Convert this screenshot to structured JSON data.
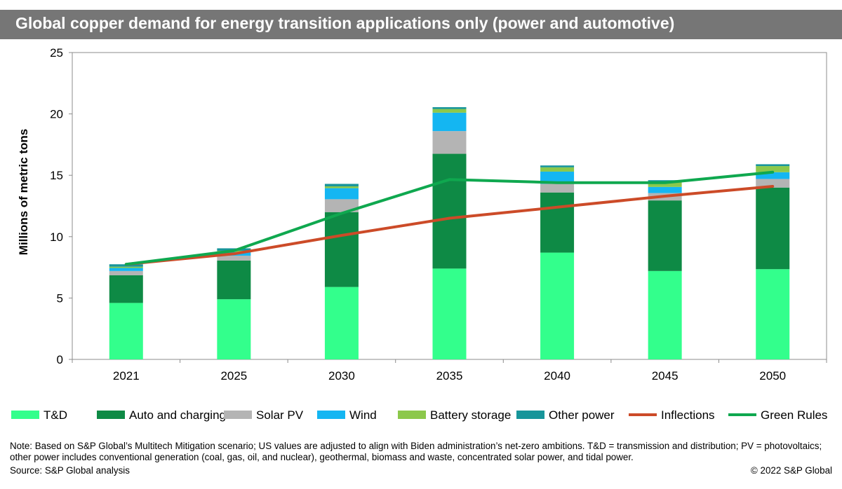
{
  "chart_data": {
    "type": "bar",
    "stacked": true,
    "title": "Global copper demand for energy transition applications only (power and automotive)",
    "ylabel": "Millions of metric tons",
    "xlabel": "",
    "ylim": [
      0,
      25
    ],
    "yticks": [
      "0",
      "5",
      "10",
      "15",
      "20",
      "25"
    ],
    "grid": false,
    "legend_position": "bottom",
    "categories": [
      "2021",
      "2025",
      "2030",
      "2035",
      "2040",
      "2045",
      "2050"
    ],
    "series": [
      {
        "name": "T&D",
        "kind": "bar",
        "color": "#33ff8c",
        "values": [
          4.6,
          4.9,
          5.9,
          7.4,
          8.7,
          7.2,
          7.35
        ]
      },
      {
        "name": "Auto and charging",
        "kind": "bar",
        "color": "#0e8a45",
        "values": [
          2.25,
          3.15,
          6.1,
          9.35,
          4.9,
          5.75,
          6.65
        ]
      },
      {
        "name": "Solar PV",
        "kind": "bar",
        "color": "#b4b4b4",
        "values": [
          0.35,
          0.4,
          1.05,
          1.85,
          0.7,
          0.6,
          0.7
        ]
      },
      {
        "name": "Wind",
        "kind": "bar",
        "color": "#14b6f2",
        "values": [
          0.25,
          0.3,
          0.9,
          1.5,
          1.0,
          0.5,
          0.55
        ]
      },
      {
        "name": "Battery storage",
        "kind": "bar",
        "color": "#8cc84b",
        "values": [
          0.1,
          0.1,
          0.15,
          0.3,
          0.35,
          0.4,
          0.5
        ]
      },
      {
        "name": "Other power",
        "kind": "bar",
        "color": "#17959a",
        "values": [
          0.2,
          0.2,
          0.2,
          0.15,
          0.15,
          0.15,
          0.15
        ]
      },
      {
        "name": "Inflections",
        "kind": "line",
        "color": "#cc4b28",
        "values": [
          7.75,
          8.6,
          10.1,
          11.5,
          12.4,
          13.3,
          14.1
        ]
      },
      {
        "name": "Green Rules",
        "kind": "line",
        "color": "#0fa84f",
        "values": [
          7.75,
          8.85,
          11.9,
          14.65,
          14.4,
          14.4,
          15.25
        ]
      }
    ]
  },
  "note": "Note: Based on S&P Global’s Multitech Mitigation scenario; US values are adjusted to align with Biden administration’s net-zero ambitions. T&D = transmission and distribution; PV = photovoltaics; other power includes conventional generation (coal, gas, oil, and nuclear), geothermal, biomass and waste, concentrated solar power, and tidal power.",
  "source": "Source: S&P Global analysis",
  "copyright": "© 2022 S&P Global"
}
